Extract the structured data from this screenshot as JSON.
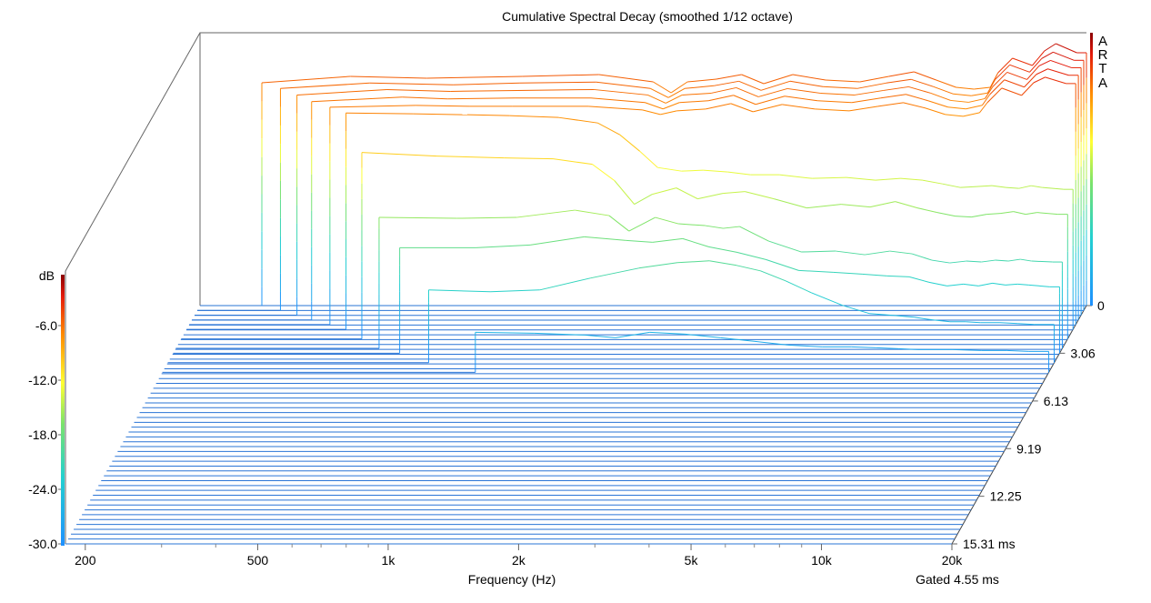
{
  "chart_data": {
    "type": "waterfall",
    "title": "Cumulative Spectral Decay (smoothed 1/12 octave)",
    "xlabel": "Frequency (Hz)",
    "x_scale": "log",
    "xlim": [
      180,
      20000
    ],
    "x_ticks": [
      {
        "v": 200,
        "label": "200"
      },
      {
        "v": 500,
        "label": "500"
      },
      {
        "v": 1000,
        "label": "1k"
      },
      {
        "v": 2000,
        "label": "2k"
      },
      {
        "v": 5000,
        "label": "5k"
      },
      {
        "v": 10000,
        "label": "10k"
      },
      {
        "v": 20000,
        "label": "20k"
      }
    ],
    "zlabel": "dB",
    "zlim": [
      -30,
      0
    ],
    "z_ticks": [
      {
        "v": -6,
        "label": "-6.0"
      },
      {
        "v": -12,
        "label": "-12.0"
      },
      {
        "v": -18,
        "label": "-18.0"
      },
      {
        "v": -24,
        "label": "-24.0"
      },
      {
        "v": -30,
        "label": "-30.0"
      }
    ],
    "time_unit": "ms",
    "time_ticks": [
      {
        "v": 0,
        "label": "0"
      },
      {
        "v": 3.06,
        "label": "3.06"
      },
      {
        "v": 6.13,
        "label": "6.13"
      },
      {
        "v": 9.19,
        "label": "9.19"
      },
      {
        "v": 12.25,
        "label": "12.25"
      },
      {
        "v": 15.31,
        "label": "15.31 ms"
      }
    ],
    "tmax": 15.31,
    "slice_count": 50,
    "gate_label": "Gated 4.55 ms",
    "brand": "ARTA",
    "series": [
      {
        "t": 0.0,
        "start_hz": 250,
        "points": [
          [
            250,
            -5.5
          ],
          [
            400,
            -4.8
          ],
          [
            600,
            -5.0
          ],
          [
            1000,
            -4.8
          ],
          [
            1500,
            -4.6
          ],
          [
            2000,
            -5.4
          ],
          [
            2200,
            -6.6
          ],
          [
            2400,
            -5.4
          ],
          [
            2800,
            -5.1
          ],
          [
            3200,
            -4.6
          ],
          [
            3600,
            -5.6
          ],
          [
            4200,
            -4.6
          ],
          [
            5000,
            -5.2
          ],
          [
            6000,
            -5.4
          ],
          [
            7000,
            -4.8
          ],
          [
            8000,
            -4.3
          ],
          [
            9000,
            -5.2
          ],
          [
            10000,
            -6.0
          ],
          [
            11000,
            -6.2
          ],
          [
            12000,
            -6.0
          ],
          [
            12500,
            -4.4
          ],
          [
            13500,
            -2.8
          ],
          [
            15000,
            -3.6
          ],
          [
            16000,
            -2.0
          ],
          [
            17000,
            -1.2
          ],
          [
            19000,
            -2.2
          ],
          [
            20000,
            -2.2
          ]
        ]
      },
      {
        "t": 0.31,
        "start_hz": 280,
        "points": [
          [
            280,
            -5.6
          ],
          [
            450,
            -5.0
          ],
          [
            700,
            -5.2
          ],
          [
            1000,
            -5.0
          ],
          [
            1500,
            -4.9
          ],
          [
            2000,
            -5.6
          ],
          [
            2200,
            -6.6
          ],
          [
            2400,
            -5.6
          ],
          [
            2800,
            -5.3
          ],
          [
            3200,
            -4.8
          ],
          [
            3600,
            -5.8
          ],
          [
            4200,
            -4.8
          ],
          [
            5000,
            -5.4
          ],
          [
            6000,
            -5.6
          ],
          [
            7000,
            -5.0
          ],
          [
            8000,
            -4.6
          ],
          [
            9000,
            -5.4
          ],
          [
            10000,
            -6.2
          ],
          [
            11000,
            -6.4
          ],
          [
            12000,
            -6.1
          ],
          [
            12500,
            -4.6
          ],
          [
            13500,
            -3.0
          ],
          [
            15000,
            -3.8
          ],
          [
            16000,
            -2.3
          ],
          [
            17000,
            -1.6
          ],
          [
            19000,
            -2.5
          ],
          [
            20000,
            -2.5
          ]
        ]
      },
      {
        "t": 0.61,
        "start_hz": 310,
        "points": [
          [
            310,
            -5.8
          ],
          [
            500,
            -5.2
          ],
          [
            700,
            -5.4
          ],
          [
            1000,
            -5.3
          ],
          [
            1500,
            -5.2
          ],
          [
            2000,
            -5.8
          ],
          [
            2200,
            -6.7
          ],
          [
            2400,
            -5.8
          ],
          [
            2800,
            -5.6
          ],
          [
            3200,
            -5.0
          ],
          [
            3600,
            -6.0
          ],
          [
            4200,
            -5.1
          ],
          [
            5000,
            -5.6
          ],
          [
            6000,
            -5.8
          ],
          [
            7000,
            -5.3
          ],
          [
            8000,
            -4.9
          ],
          [
            9000,
            -5.6
          ],
          [
            10000,
            -6.4
          ],
          [
            11000,
            -6.6
          ],
          [
            12000,
            -6.2
          ],
          [
            12500,
            -4.9
          ],
          [
            13500,
            -3.3
          ],
          [
            15000,
            -4.1
          ],
          [
            16000,
            -2.6
          ],
          [
            17000,
            -2.0
          ],
          [
            19000,
            -2.8
          ],
          [
            20000,
            -2.8
          ]
        ]
      },
      {
        "t": 0.92,
        "start_hz": 340,
        "points": [
          [
            340,
            -6.0
          ],
          [
            550,
            -5.5
          ],
          [
            700,
            -5.7
          ],
          [
            1000,
            -5.6
          ],
          [
            1500,
            -5.6
          ],
          [
            2000,
            -6.1
          ],
          [
            2200,
            -6.8
          ],
          [
            2400,
            -6.1
          ],
          [
            2800,
            -5.9
          ],
          [
            3200,
            -5.3
          ],
          [
            3600,
            -6.3
          ],
          [
            4200,
            -5.4
          ],
          [
            5000,
            -5.9
          ],
          [
            6000,
            -6.1
          ],
          [
            7000,
            -5.6
          ],
          [
            8000,
            -5.2
          ],
          [
            9000,
            -5.9
          ],
          [
            10000,
            -6.6
          ],
          [
            11000,
            -6.8
          ],
          [
            12000,
            -6.4
          ],
          [
            12500,
            -5.2
          ],
          [
            13500,
            -3.6
          ],
          [
            15000,
            -4.4
          ],
          [
            16000,
            -3.0
          ],
          [
            17000,
            -2.4
          ],
          [
            19000,
            -3.1
          ],
          [
            20000,
            -3.1
          ]
        ]
      },
      {
        "t": 1.22,
        "start_hz": 380,
        "points": [
          [
            380,
            -6.1
          ],
          [
            600,
            -5.9
          ],
          [
            800,
            -6.0
          ],
          [
            1000,
            -6.0
          ],
          [
            1500,
            -6.0
          ],
          [
            2000,
            -6.4
          ],
          [
            2200,
            -6.9
          ],
          [
            2400,
            -6.5
          ],
          [
            2800,
            -6.3
          ],
          [
            3200,
            -5.7
          ],
          [
            3600,
            -6.6
          ],
          [
            4200,
            -5.8
          ],
          [
            5000,
            -6.3
          ],
          [
            6000,
            -6.5
          ],
          [
            7000,
            -6.0
          ],
          [
            8000,
            -5.6
          ],
          [
            9000,
            -6.2
          ],
          [
            10000,
            -6.9
          ],
          [
            11000,
            -7.1
          ],
          [
            12000,
            -6.7
          ],
          [
            12500,
            -5.6
          ],
          [
            13500,
            -4.0
          ],
          [
            15000,
            -4.8
          ],
          [
            16000,
            -3.4
          ],
          [
            17000,
            -2.8
          ],
          [
            19000,
            -3.5
          ],
          [
            20000,
            -3.5
          ]
        ]
      },
      {
        "t": 1.53,
        "start_hz": 420,
        "points": [
          [
            420,
            -6.2
          ],
          [
            600,
            -6.3
          ],
          [
            800,
            -6.4
          ],
          [
            1000,
            -6.5
          ],
          [
            1300,
            -6.7
          ],
          [
            1600,
            -7.3
          ],
          [
            1800,
            -8.6
          ],
          [
            2000,
            -10.4
          ],
          [
            2200,
            -12.2
          ],
          [
            2500,
            -12.6
          ],
          [
            2800,
            -12.5
          ],
          [
            3200,
            -12.7
          ],
          [
            3600,
            -13.0
          ],
          [
            4200,
            -13.0
          ],
          [
            5000,
            -13.4
          ],
          [
            6000,
            -13.3
          ],
          [
            7000,
            -13.6
          ],
          [
            8000,
            -13.4
          ],
          [
            9000,
            -13.6
          ],
          [
            10000,
            -14.0
          ],
          [
            11000,
            -14.4
          ],
          [
            12000,
            -14.3
          ],
          [
            13000,
            -14.2
          ],
          [
            14000,
            -14.4
          ],
          [
            15000,
            -14.5
          ],
          [
            16000,
            -14.2
          ],
          [
            17000,
            -14.4
          ],
          [
            19000,
            -14.6
          ],
          [
            20000,
            -14.6
          ]
        ]
      },
      {
        "t": 2.14,
        "start_hz": 470,
        "points": [
          [
            470,
            -9.5
          ],
          [
            700,
            -9.9
          ],
          [
            1000,
            -10.1
          ],
          [
            1300,
            -10.2
          ],
          [
            1600,
            -10.8
          ],
          [
            1800,
            -12.6
          ],
          [
            2000,
            -15.2
          ],
          [
            2200,
            -14.1
          ],
          [
            2500,
            -13.4
          ],
          [
            2800,
            -14.6
          ],
          [
            3200,
            -14.0
          ],
          [
            3600,
            -13.8
          ],
          [
            4200,
            -14.6
          ],
          [
            5000,
            -15.6
          ],
          [
            6000,
            -15.2
          ],
          [
            7000,
            -15.5
          ],
          [
            8000,
            -14.9
          ],
          [
            9000,
            -15.6
          ],
          [
            10000,
            -16.1
          ],
          [
            11000,
            -16.5
          ],
          [
            12000,
            -16.6
          ],
          [
            13000,
            -16.3
          ],
          [
            14000,
            -16.2
          ],
          [
            15000,
            -16.0
          ],
          [
            16000,
            -16.3
          ],
          [
            17000,
            -16.1
          ],
          [
            19000,
            -16.3
          ],
          [
            20000,
            -16.3
          ]
        ]
      },
      {
        "t": 2.75,
        "start_hz": 530,
        "points": [
          [
            530,
            -15.6
          ],
          [
            800,
            -15.7
          ],
          [
            1100,
            -15.6
          ],
          [
            1500,
            -14.8
          ],
          [
            1800,
            -15.4
          ],
          [
            2000,
            -17.1
          ],
          [
            2300,
            -15.6
          ],
          [
            2600,
            -16.3
          ],
          [
            3000,
            -16.5
          ],
          [
            3300,
            -16.8
          ],
          [
            3600,
            -16.6
          ],
          [
            4200,
            -18.2
          ],
          [
            5000,
            -19.4
          ],
          [
            6000,
            -19.3
          ],
          [
            7000,
            -19.7
          ],
          [
            8000,
            -19.3
          ],
          [
            9000,
            -19.6
          ],
          [
            10000,
            -20.3
          ],
          [
            11000,
            -20.6
          ],
          [
            12000,
            -20.4
          ],
          [
            13000,
            -20.5
          ],
          [
            14000,
            -20.3
          ],
          [
            15000,
            -20.4
          ],
          [
            16000,
            -20.2
          ],
          [
            17000,
            -20.4
          ],
          [
            19000,
            -20.5
          ],
          [
            20000,
            -20.5
          ]
        ]
      },
      {
        "t": 3.06,
        "start_hz": 600,
        "points": [
          [
            600,
            -18.4
          ],
          [
            900,
            -18.4
          ],
          [
            1200,
            -18.1
          ],
          [
            1600,
            -17.2
          ],
          [
            2000,
            -17.6
          ],
          [
            2300,
            -17.8
          ],
          [
            2700,
            -17.4
          ],
          [
            3100,
            -18.3
          ],
          [
            3600,
            -18.9
          ],
          [
            4200,
            -19.7
          ],
          [
            5000,
            -20.9
          ],
          [
            6000,
            -21.1
          ],
          [
            7000,
            -21.3
          ],
          [
            8000,
            -21.5
          ],
          [
            9000,
            -21.6
          ],
          [
            10000,
            -22.2
          ],
          [
            11000,
            -22.6
          ],
          [
            12000,
            -22.4
          ],
          [
            13000,
            -22.6
          ],
          [
            14000,
            -22.3
          ],
          [
            15000,
            -22.5
          ],
          [
            16000,
            -22.4
          ],
          [
            17000,
            -22.5
          ],
          [
            19000,
            -22.7
          ],
          [
            20000,
            -22.7
          ]
        ]
      },
      {
        "t": 3.67,
        "start_hz": 720,
        "points": [
          [
            720,
            -22.0
          ],
          [
            1000,
            -22.2
          ],
          [
            1300,
            -22.0
          ],
          [
            1700,
            -20.7
          ],
          [
            2200,
            -19.6
          ],
          [
            2700,
            -19.0
          ],
          [
            3200,
            -18.8
          ],
          [
            3700,
            -19.3
          ],
          [
            4200,
            -19.9
          ],
          [
            4800,
            -21.0
          ],
          [
            5500,
            -22.3
          ],
          [
            6500,
            -23.7
          ],
          [
            7500,
            -24.6
          ],
          [
            8500,
            -24.8
          ],
          [
            9500,
            -25.0
          ],
          [
            10500,
            -25.3
          ],
          [
            11500,
            -25.5
          ],
          [
            12500,
            -25.5
          ],
          [
            13500,
            -25.6
          ],
          [
            15000,
            -25.6
          ],
          [
            16500,
            -25.7
          ],
          [
            18000,
            -25.8
          ],
          [
            20000,
            -25.8
          ]
        ]
      },
      {
        "t": 4.29,
        "start_hz": 950,
        "points": [
          [
            950,
            -25.6
          ],
          [
            1300,
            -25.7
          ],
          [
            1700,
            -25.9
          ],
          [
            2000,
            -26.2
          ],
          [
            2400,
            -25.6
          ],
          [
            2900,
            -25.8
          ],
          [
            3500,
            -26.2
          ],
          [
            4200,
            -26.6
          ],
          [
            5000,
            -27.0
          ],
          [
            6000,
            -27.2
          ],
          [
            7000,
            -27.2
          ],
          [
            8000,
            -27.3
          ],
          [
            9000,
            -27.4
          ],
          [
            10000,
            -27.5
          ],
          [
            12000,
            -27.5
          ],
          [
            14000,
            -27.6
          ],
          [
            16000,
            -27.6
          ],
          [
            18000,
            -27.7
          ],
          [
            20000,
            -27.7
          ]
        ]
      }
    ]
  }
}
